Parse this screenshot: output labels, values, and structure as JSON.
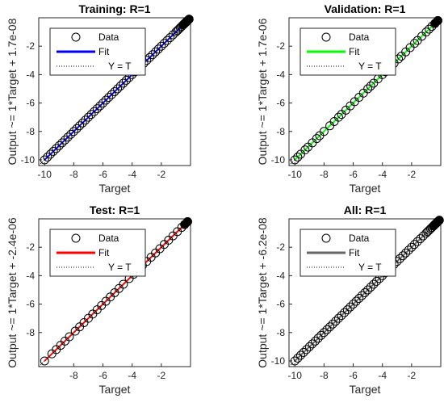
{
  "chart_data": [
    {
      "type": "scatter",
      "title": "Training: R=1",
      "xlabel": "Target",
      "ylabel": "Output ~= 1*Target + 1.7e-08",
      "xlim": [
        -10.4,
        0
      ],
      "ylim": [
        -10.4,
        0
      ],
      "xticks": [
        -10,
        -8,
        -6,
        -4,
        -2
      ],
      "yticks": [
        -10,
        -8,
        -6,
        -4,
        -2
      ],
      "grid": false,
      "legend": {
        "position": "top-left",
        "entries": [
          "Data",
          "Fit",
          "Y = T"
        ]
      },
      "fit_color": "#0000ff",
      "marker_color": "#000000",
      "fit_line": {
        "x": [
          -10,
          0
        ],
        "y": [
          -10,
          0
        ]
      },
      "series": [
        {
          "x": [
            -10,
            -9.8,
            -9.6,
            -9.4,
            -9.2,
            -9,
            -8.8,
            -8.6,
            -8.4,
            -8.2,
            -8,
            -7.8,
            -7.6,
            -7.4,
            -7.2,
            -7,
            -6.8,
            -6.6,
            -6.4,
            -6.2,
            -6,
            -5.8,
            -5.6,
            -5.4,
            -5.2,
            -5,
            -4.8,
            -4.6,
            -4.4,
            -4.2,
            -4,
            -3.8,
            -3.6,
            -3.4,
            -3.2,
            -3,
            -2.8,
            -2.6,
            -2.4,
            -2.2,
            -2,
            -1.8,
            -1.6,
            -1.4,
            -1.2,
            -1,
            -0.9,
            -0.8,
            -0.7,
            -0.6,
            -0.5,
            -0.45,
            -0.4,
            -0.35,
            -0.3,
            -0.25,
            -0.2,
            -0.15,
            -0.1
          ],
          "y": [
            -10,
            -9.8,
            -9.6,
            -9.4,
            -9.2,
            -9,
            -8.8,
            -8.6,
            -8.4,
            -8.2,
            -8,
            -7.8,
            -7.6,
            -7.4,
            -7.2,
            -7,
            -6.8,
            -6.6,
            -6.4,
            -6.2,
            -6,
            -5.8,
            -5.6,
            -5.4,
            -5.2,
            -5,
            -4.8,
            -4.6,
            -4.4,
            -4.2,
            -4,
            -3.8,
            -3.6,
            -3.4,
            -3.2,
            -3,
            -2.8,
            -2.6,
            -2.4,
            -2.2,
            -2,
            -1.8,
            -1.6,
            -1.4,
            -1.2,
            -1,
            -0.9,
            -0.8,
            -0.7,
            -0.6,
            -0.5,
            -0.45,
            -0.4,
            -0.35,
            -0.3,
            -0.25,
            -0.2,
            -0.15,
            -0.1
          ]
        }
      ]
    },
    {
      "type": "scatter",
      "title": "Validation: R=1",
      "xlabel": "Target",
      "ylabel": "Output ~= 1*Target + 1.7e-06",
      "xlim": [
        -10.4,
        0
      ],
      "ylim": [
        -10.4,
        0
      ],
      "xticks": [
        -10,
        -8,
        -6,
        -4,
        -2
      ],
      "yticks": [
        -10,
        -8,
        -6,
        -4,
        -2
      ],
      "grid": false,
      "legend": {
        "position": "top-left",
        "entries": [
          "Data",
          "Fit",
          "Y = T"
        ]
      },
      "fit_color": "#00ff00",
      "marker_color": "#000000",
      "fit_line": {
        "x": [
          -10,
          0
        ],
        "y": [
          -10,
          0
        ]
      },
      "series": [
        {
          "x": [
            -10,
            -9.8,
            -9.6,
            -9.3,
            -9.1,
            -8.8,
            -8.5,
            -8.3,
            -8.0,
            -7.6,
            -7.3,
            -7.0,
            -6.8,
            -6.5,
            -6.2,
            -5.9,
            -5.6,
            -5.3,
            -5.0,
            -4.8,
            -4.6,
            -4.3,
            -4.0,
            -3.8,
            -3.5,
            -3.2,
            -2.9,
            -2.7,
            -2.4,
            -2.1,
            -1.8,
            -1.6,
            -1.3,
            -1.0,
            -0.8,
            -0.6,
            -0.4,
            -0.2
          ],
          "y": [
            -10,
            -9.8,
            -9.6,
            -9.3,
            -9.1,
            -8.8,
            -8.5,
            -8.3,
            -8.0,
            -7.6,
            -7.3,
            -7.0,
            -6.8,
            -6.5,
            -6.2,
            -5.9,
            -5.6,
            -5.3,
            -5.0,
            -4.8,
            -4.6,
            -4.3,
            -4.0,
            -3.8,
            -3.5,
            -3.2,
            -2.9,
            -2.7,
            -2.4,
            -2.1,
            -1.8,
            -1.6,
            -1.3,
            -1.0,
            -0.8,
            -0.6,
            -0.4,
            -0.2
          ]
        }
      ]
    },
    {
      "type": "scatter",
      "title": "Test: R=1",
      "xlabel": "Target",
      "ylabel": "Output ~= 1*Target + -2.4e-06",
      "xlim": [
        -10.4,
        0
      ],
      "ylim": [
        -10.4,
        0
      ],
      "xticks": [
        -8,
        -6,
        -4,
        -2
      ],
      "yticks": [
        -8,
        -6,
        -4,
        -2
      ],
      "grid": false,
      "legend": {
        "position": "top-left",
        "entries": [
          "Data",
          "Fit",
          "Y = T"
        ]
      },
      "fit_color": "#ff0000",
      "marker_color": "#000000",
      "fit_line": {
        "x": [
          -10,
          0
        ],
        "y": [
          -10,
          0
        ]
      },
      "series": [
        {
          "x": [
            -10,
            -9.5,
            -9.2,
            -8.9,
            -8.6,
            -8.3,
            -7.9,
            -7.6,
            -7.3,
            -7.0,
            -6.7,
            -6.4,
            -6.1,
            -5.8,
            -5.5,
            -5.2,
            -4.9,
            -4.6,
            -4.2,
            -3.9,
            -3.6,
            -3.3,
            -3.0,
            -2.7,
            -2.4,
            -2.1,
            -1.8,
            -1.5,
            -1.2,
            -0.9,
            -0.6,
            -0.4,
            -0.2
          ],
          "y": [
            -10,
            -9.5,
            -9.2,
            -8.9,
            -8.6,
            -8.3,
            -7.9,
            -7.6,
            -7.3,
            -7.0,
            -6.7,
            -6.4,
            -6.1,
            -5.8,
            -5.5,
            -5.2,
            -4.9,
            -4.6,
            -4.2,
            -3.9,
            -3.6,
            -3.3,
            -3.0,
            -2.7,
            -2.4,
            -2.1,
            -1.8,
            -1.5,
            -1.2,
            -0.9,
            -0.6,
            -0.4,
            -0.2
          ]
        }
      ]
    },
    {
      "type": "scatter",
      "title": "All: R=1",
      "xlabel": "Target",
      "ylabel": "Output ~= 1*Target + -6.2e-08",
      "xlim": [
        -10.4,
        0
      ],
      "ylim": [
        -10.4,
        0
      ],
      "xticks": [
        -10,
        -8,
        -6,
        -4,
        -2
      ],
      "yticks": [
        -10,
        -8,
        -6,
        -4,
        -2
      ],
      "grid": false,
      "legend": {
        "position": "top-left",
        "entries": [
          "Data",
          "Fit",
          "Y = T"
        ]
      },
      "fit_color": "#666666",
      "marker_color": "#000000",
      "fit_line": {
        "x": [
          -10,
          0
        ],
        "y": [
          -10,
          0
        ]
      },
      "series": [
        {
          "x": [
            -10,
            -9.8,
            -9.6,
            -9.4,
            -9.2,
            -9,
            -8.8,
            -8.6,
            -8.4,
            -8.2,
            -8,
            -7.8,
            -7.6,
            -7.4,
            -7.2,
            -7,
            -6.8,
            -6.6,
            -6.4,
            -6.2,
            -6,
            -5.8,
            -5.6,
            -5.4,
            -5.2,
            -5,
            -4.8,
            -4.6,
            -4.4,
            -4.2,
            -4,
            -3.8,
            -3.6,
            -3.4,
            -3.2,
            -3,
            -2.8,
            -2.6,
            -2.4,
            -2.2,
            -2,
            -1.8,
            -1.6,
            -1.4,
            -1.2,
            -1,
            -0.9,
            -0.8,
            -0.7,
            -0.6,
            -0.5,
            -0.45,
            -0.4,
            -0.35,
            -0.3,
            -0.25,
            -0.2,
            -0.15,
            -0.1
          ],
          "y": [
            -10,
            -9.8,
            -9.6,
            -9.4,
            -9.2,
            -9,
            -8.8,
            -8.6,
            -8.4,
            -8.2,
            -8,
            -7.8,
            -7.6,
            -7.4,
            -7.2,
            -7,
            -6.8,
            -6.6,
            -6.4,
            -6.2,
            -6,
            -5.8,
            -5.6,
            -5.4,
            -5.2,
            -5,
            -4.8,
            -4.6,
            -4.4,
            -4.2,
            -4,
            -3.8,
            -3.6,
            -3.4,
            -3.2,
            -3,
            -2.8,
            -2.6,
            -2.4,
            -2.2,
            -2,
            -1.8,
            -1.6,
            -1.4,
            -1.2,
            -1,
            -0.9,
            -0.8,
            -0.7,
            -0.6,
            -0.5,
            -0.45,
            -0.4,
            -0.35,
            -0.3,
            -0.25,
            -0.2,
            -0.15,
            -0.1
          ]
        }
      ]
    }
  ]
}
